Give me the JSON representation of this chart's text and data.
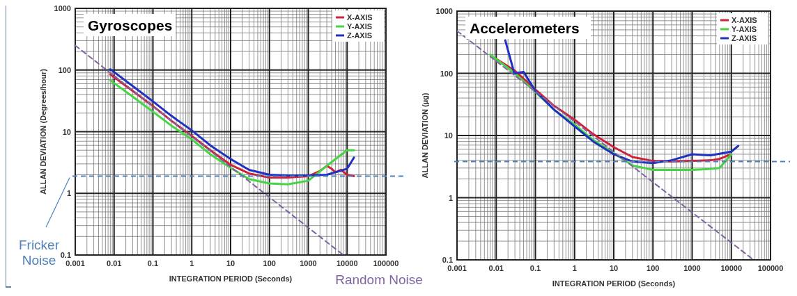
{
  "chart_data": [
    {
      "type": "line",
      "title": "Gyroscopes",
      "xlabel": "INTEGRATION PERIOD (Seconds)",
      "ylabel": "ALLAN DEVIATION (Degrees/hour)",
      "log": "xy",
      "grid": true,
      "legend": "top right",
      "xlim": [
        0.001,
        100000
      ],
      "xticks": [
        0.001,
        0.01,
        0.1,
        1,
        10,
        100,
        1000,
        10000,
        100000
      ],
      "ylim": [
        0.1,
        1000
      ],
      "yticks": [
        0.1,
        1,
        10,
        100,
        1000
      ],
      "series": [
        {
          "name": "X-AXIS",
          "color": "#d0203a",
          "x": [
            0.008,
            0.03,
            0.1,
            0.3,
            1,
            3,
            10,
            30,
            100,
            300,
            1000,
            2000,
            3000,
            4000,
            5000,
            7000,
            10000,
            15000
          ],
          "values": [
            85,
            46,
            26,
            15,
            8.5,
            5,
            2.9,
            2.1,
            1.8,
            1.8,
            1.9,
            2.3,
            2.8,
            2.5,
            2.2,
            2.4,
            2,
            1.9
          ]
        },
        {
          "name": "Y-AXIS",
          "color": "#44d444",
          "x": [
            0.008,
            0.03,
            0.1,
            0.3,
            1,
            3,
            10,
            30,
            100,
            300,
            1000,
            3000,
            10000,
            15000
          ],
          "values": [
            68,
            37,
            21,
            12.5,
            7.5,
            4.3,
            2.6,
            1.7,
            1.45,
            1.4,
            1.6,
            2.8,
            5,
            5
          ]
        },
        {
          "name": "Z-AXIS",
          "color": "#2030c0",
          "x": [
            0.008,
            0.03,
            0.1,
            0.3,
            1,
            3,
            10,
            30,
            100,
            300,
            1000,
            3000,
            10000,
            15000
          ],
          "values": [
            103,
            55,
            31,
            18,
            10.5,
            6,
            3.6,
            2.4,
            2,
            1.95,
            1.95,
            2,
            2.5,
            3.8
          ]
        },
        {
          "type": "line",
          "color": "#8064a2",
          "line_style": "dashed",
          "x": [
            0.001,
            8000
          ],
          "values": [
            250,
            0.1
          ]
        }
      ],
      "ref_lines": [
        {
          "axis": "y",
          "value": 1.9,
          "label": "Fricker Noise",
          "color": "#4f81bd",
          "line_style": "dashed"
        }
      ],
      "annotations": [
        "Random Noise"
      ]
    },
    {
      "type": "line",
      "title": "Accelerometers",
      "xlabel": "INTEGRATION PERIOD (Seconds)",
      "ylabel": "ALLAN DEVIATION (µg)",
      "log": "xy",
      "grid": true,
      "legend": "top right",
      "xlim": [
        0.001,
        100000
      ],
      "xticks": [
        0.001,
        0.01,
        0.1,
        1,
        10,
        100,
        1000,
        10000,
        100000
      ],
      "ylim": [
        0.1,
        1000
      ],
      "yticks": [
        0.1,
        1,
        10,
        100,
        1000
      ],
      "series": [
        {
          "name": "X-AXIS",
          "color": "#d0203a",
          "x": [
            0.01,
            0.03,
            0.1,
            0.3,
            1,
            3,
            10,
            30,
            100,
            300,
            1000,
            3000,
            5000,
            10000
          ],
          "values": [
            170,
            110,
            55,
            30,
            18,
            10.5,
            6.5,
            4.5,
            3.9,
            3.8,
            3.9,
            4,
            4.2,
            5
          ]
        },
        {
          "name": "Y-AXIS",
          "color": "#44d444",
          "x": [
            0.007,
            0.03,
            0.1,
            0.3,
            1,
            3,
            10,
            30,
            100,
            300,
            1000,
            3000,
            5000,
            10000
          ],
          "values": [
            200,
            100,
            50,
            26,
            15,
            8.5,
            5.2,
            3.3,
            2.8,
            2.8,
            2.8,
            2.9,
            3,
            5
          ]
        },
        {
          "name": "Z-AXIS",
          "color": "#2030c0",
          "x": [
            0.017,
            0.029,
            0.05,
            0.1,
            0.3,
            1,
            3,
            10,
            30,
            100,
            300,
            1000,
            3000,
            10000,
            15000
          ],
          "values": [
            340,
            100,
            105,
            52,
            26,
            14,
            8,
            5,
            3.8,
            3.6,
            4,
            5,
            4.8,
            5.5,
            6.8
          ]
        },
        {
          "type": "line",
          "color": "#8064a2",
          "line_style": "dashed",
          "x": [
            0.001,
            37000
          ],
          "values": [
            480,
            0.1
          ]
        }
      ],
      "ref_lines": [
        {
          "axis": "y",
          "value": 3.8,
          "color": "#4f81bd",
          "line_style": "dashed"
        }
      ]
    }
  ]
}
